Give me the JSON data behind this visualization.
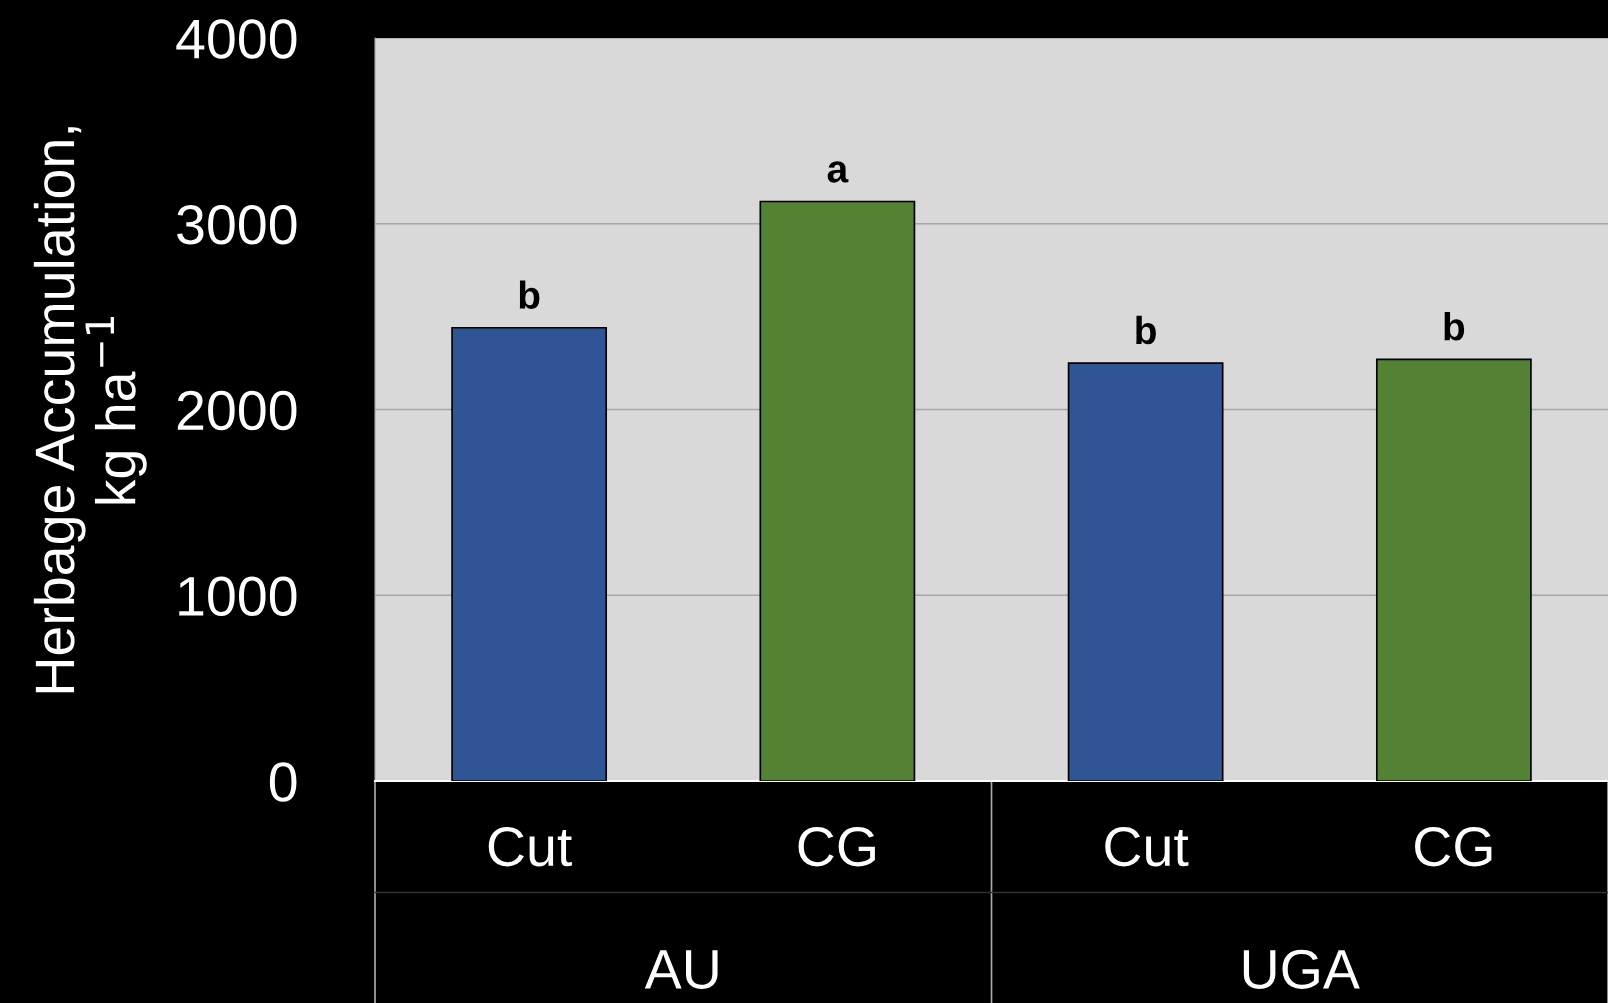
{
  "chart_data": {
    "type": "bar",
    "ylabel": "Herbage Accumulation,\nkg ha$^{−1}$",
    "categories": [
      "AU",
      "UGA"
    ],
    "series": [
      {
        "name": "Cut",
        "color": "#2f5597",
        "values": [
          2440,
          2250
        ],
        "value_labels": [
          "b",
          "b"
        ]
      },
      {
        "name": "CG",
        "color": "#548235",
        "values": [
          3120,
          2270
        ],
        "value_labels": [
          "a",
          "b"
        ]
      }
    ],
    "ylim": [
      0,
      4000
    ],
    "yticks": [
      0,
      1000,
      2000,
      3000,
      4000
    ],
    "grid": "y",
    "legend": false
  }
}
